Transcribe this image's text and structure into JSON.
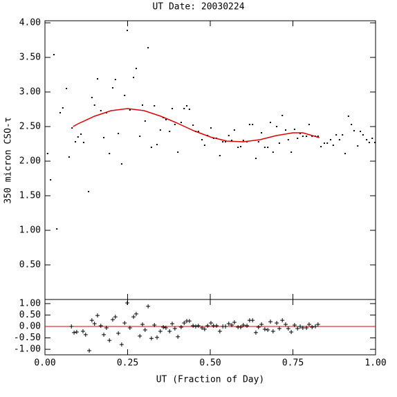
{
  "chart_data": [
    {
      "type": "scatter",
      "title": "UT Date: 20030224",
      "y_label": "350 micron CSO-τ",
      "color": "#000000",
      "x": [
        0.008,
        0.017,
        0.027,
        0.036,
        0.046,
        0.054,
        0.065,
        0.073,
        0.082,
        0.092,
        0.1,
        0.109,
        0.117,
        0.132,
        0.142,
        0.15,
        0.159,
        0.169,
        0.178,
        0.186,
        0.195,
        0.205,
        0.213,
        0.222,
        0.232,
        0.241,
        0.249,
        0.257,
        0.268,
        0.276,
        0.287,
        0.295,
        0.303,
        0.312,
        0.322,
        0.331,
        0.339,
        0.349,
        0.358,
        0.366,
        0.377,
        0.385,
        0.393,
        0.402,
        0.412,
        0.421,
        0.429,
        0.437,
        0.448,
        0.456,
        0.464,
        0.475,
        0.483,
        0.492,
        0.502,
        0.51,
        0.519,
        0.529,
        0.538,
        0.546,
        0.556,
        0.565,
        0.573,
        0.584,
        0.592,
        0.6,
        0.611,
        0.619,
        0.628,
        0.638,
        0.646,
        0.655,
        0.665,
        0.674,
        0.682,
        0.69,
        0.701,
        0.709,
        0.718,
        0.728,
        0.736,
        0.745,
        0.755,
        0.764,
        0.772,
        0.78,
        0.791,
        0.799,
        0.808,
        0.818,
        0.826,
        0.835,
        0.845,
        0.854,
        0.864,
        0.872,
        0.881,
        0.891,
        0.9,
        0.908,
        0.918,
        0.927,
        0.935,
        0.946,
        0.954,
        0.962,
        0.973,
        0.981,
        0.99,
        0.998
      ],
      "values": [
        2.11,
        1.73,
        3.54,
        1.02,
        2.7,
        2.77,
        3.05,
        2.06,
        2.48,
        2.28,
        2.35,
        2.39,
        2.27,
        1.56,
        2.92,
        2.81,
        3.19,
        2.73,
        2.34,
        2.7,
        2.11,
        3.06,
        3.18,
        2.4,
        1.96,
        2.95,
        3.89,
        2.74,
        3.21,
        3.34,
        2.36,
        2.81,
        2.58,
        3.64,
        2.2,
        2.8,
        2.24,
        2.45,
        2.63,
        2.6,
        2.43,
        2.76,
        2.53,
        2.13,
        2.56,
        2.76,
        2.8,
        2.75,
        2.52,
        2.43,
        2.43,
        2.31,
        2.23,
        2.37,
        2.48,
        2.33,
        2.33,
        2.08,
        2.28,
        2.28,
        2.37,
        2.3,
        2.45,
        2.2,
        2.21,
        2.3,
        2.28,
        2.53,
        2.53,
        2.04,
        2.28,
        2.41,
        2.2,
        2.2,
        2.56,
        2.13,
        2.5,
        2.26,
        2.66,
        2.45,
        2.31,
        2.13,
        2.46,
        2.33,
        2.4,
        2.36,
        2.36,
        2.53,
        2.36,
        2.36,
        2.36,
        2.21,
        2.26,
        2.26,
        2.31,
        2.23,
        2.38,
        2.31,
        2.38,
        2.11,
        2.65,
        2.53,
        2.44,
        2.22,
        2.43,
        2.38,
        2.31,
        2.27,
        2.33,
        2.27
      ],
      "fit": {
        "color": "#e00000",
        "x": [
          0.085,
          0.1,
          0.15,
          0.2,
          0.25,
          0.3,
          0.35,
          0.4,
          0.45,
          0.5,
          0.55,
          0.6,
          0.65,
          0.7,
          0.75,
          0.78,
          0.83
        ],
        "values": [
          2.5,
          2.54,
          2.65,
          2.73,
          2.76,
          2.73,
          2.65,
          2.55,
          2.44,
          2.35,
          2.29,
          2.28,
          2.31,
          2.37,
          2.41,
          2.41,
          2.34
        ]
      },
      "xlim": [
        0,
        1
      ],
      "ylim": [
        0,
        4.03
      ],
      "yticks": [
        {
          "value": 0.5,
          "label": "0.50"
        },
        {
          "value": 1,
          "label": "1.00"
        },
        {
          "value": 1.5,
          "label": "1.50"
        },
        {
          "value": 2,
          "label": "2.00"
        },
        {
          "value": 2.5,
          "label": "2.50"
        },
        {
          "value": 3,
          "label": "3.00"
        },
        {
          "value": 3.5,
          "label": "3.50"
        },
        {
          "value": 4,
          "label": "4.00"
        }
      ]
    },
    {
      "type": "residual",
      "x_label": "UT (Fraction of Day)",
      "color": "#000000",
      "x": [
        0.08,
        0.088,
        0.096,
        0.115,
        0.123,
        0.134,
        0.142,
        0.15,
        0.159,
        0.169,
        0.178,
        0.186,
        0.195,
        0.205,
        0.213,
        0.222,
        0.232,
        0.241,
        0.249,
        0.257,
        0.268,
        0.276,
        0.287,
        0.295,
        0.303,
        0.312,
        0.322,
        0.331,
        0.339,
        0.349,
        0.358,
        0.366,
        0.377,
        0.385,
        0.393,
        0.402,
        0.412,
        0.421,
        0.429,
        0.437,
        0.448,
        0.456,
        0.464,
        0.475,
        0.483,
        0.492,
        0.502,
        0.51,
        0.519,
        0.529,
        0.538,
        0.546,
        0.556,
        0.565,
        0.573,
        0.584,
        0.592,
        0.6,
        0.611,
        0.619,
        0.628,
        0.638,
        0.646,
        0.655,
        0.665,
        0.674,
        0.682,
        0.69,
        0.701,
        0.709,
        0.718,
        0.728,
        0.736,
        0.745,
        0.755,
        0.764,
        0.772,
        0.78,
        0.791,
        0.799,
        0.808,
        0.818,
        0.826
      ],
      "values": [
        0,
        -0.27,
        -0.24,
        -0.21,
        -0.36,
        -1.06,
        0.27,
        0.12,
        0.48,
        0.03,
        -0.36,
        -0.06,
        -0.61,
        0.3,
        0.42,
        -0.3,
        -0.79,
        0.15,
        1.03,
        -0.06,
        0.42,
        0.55,
        -0.42,
        0.09,
        -0.15,
        0.88,
        -0.52,
        0.06,
        -0.48,
        -0.21,
        -0.03,
        -0.06,
        -0.21,
        0.12,
        -0.09,
        -0.45,
        -0.03,
        0.15,
        0.24,
        0.24,
        0.03,
        0,
        0.03,
        -0.06,
        -0.12,
        0.03,
        0.15,
        0.03,
        0.03,
        -0.21,
        0,
        0,
        0.12,
        0.06,
        0.18,
        -0.03,
        -0.03,
        0.06,
        0.03,
        0.27,
        0.27,
        -0.27,
        -0.03,
        0.09,
        -0.12,
        -0.15,
        0.21,
        -0.21,
        0.15,
        -0.09,
        0.27,
        0.09,
        -0.09,
        -0.24,
        0.06,
        -0.09,
        0,
        -0.06,
        -0.06,
        0.09,
        -0.03,
        0,
        0.09
      ],
      "zero_line": {
        "value": 0,
        "color": "#e00000"
      },
      "xlim": [
        0,
        1
      ],
      "ylim": [
        -1.24,
        1.18
      ],
      "xticks": [
        {
          "value": 0,
          "label": "0.00"
        },
        {
          "value": 0.25,
          "label": "0.25"
        },
        {
          "value": 0.5,
          "label": "0.50"
        },
        {
          "value": 0.75,
          "label": "0.75"
        },
        {
          "value": 1,
          "label": "1.00"
        }
      ],
      "yticks": [
        {
          "value": -1,
          "label": "-1.00"
        },
        {
          "value": -0.5,
          "label": "-0.50"
        },
        {
          "value": 0,
          "label": "0.00"
        },
        {
          "value": 0.5,
          "label": "0.50"
        },
        {
          "value": 1,
          "label": "1.00"
        }
      ]
    }
  ]
}
